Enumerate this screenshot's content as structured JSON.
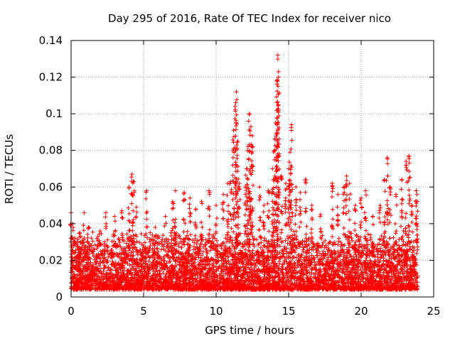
{
  "chart_data": {
    "type": "scatter",
    "title": "Day 295 of 2016, Rate Of TEC Index for receiver nico",
    "xlabel": "GPS time / hours",
    "ylabel": "ROTI / TECUs",
    "xlim": [
      0,
      24
    ],
    "ylim": [
      0,
      0.14
    ],
    "x_ticks": [
      0,
      5,
      10,
      15,
      20,
      25
    ],
    "x_tick_labels": [
      "0",
      "5",
      "10",
      "15",
      "20",
      "25"
    ],
    "y_ticks": [
      0,
      0.02,
      0.04,
      0.06,
      0.08,
      0.1,
      0.12,
      0.14
    ],
    "y_tick_labels": [
      "0",
      "0.02",
      "0.04",
      "0.06",
      "0.08",
      "0.1",
      "0.12",
      "0.14"
    ],
    "grid": true,
    "marker": "+",
    "series_color": "#ff0000",
    "series": [
      {
        "name": "ROTI",
        "points": [
          [
            0.0,
            0.046
          ],
          [
            0.1,
            0.04
          ],
          [
            0.2,
            0.03
          ],
          [
            0.6,
            0.035
          ],
          [
            0.9,
            0.046
          ],
          [
            1.2,
            0.038
          ],
          [
            2.0,
            0.036
          ],
          [
            2.4,
            0.046
          ],
          [
            3.0,
            0.044
          ],
          [
            3.5,
            0.047
          ],
          [
            4.0,
            0.06
          ],
          [
            4.2,
            0.067
          ],
          [
            4.3,
            0.063
          ],
          [
            4.5,
            0.049
          ],
          [
            5.2,
            0.058
          ],
          [
            5.8,
            0.038
          ],
          [
            6.5,
            0.044
          ],
          [
            7.0,
            0.052
          ],
          [
            7.2,
            0.058
          ],
          [
            7.8,
            0.057
          ],
          [
            8.2,
            0.054
          ],
          [
            8.6,
            0.048
          ],
          [
            9.0,
            0.052
          ],
          [
            9.5,
            0.058
          ],
          [
            10.0,
            0.05
          ],
          [
            10.5,
            0.056
          ],
          [
            10.8,
            0.062
          ],
          [
            11.0,
            0.063
          ],
          [
            11.2,
            0.091
          ],
          [
            11.35,
            0.106
          ],
          [
            11.4,
            0.112
          ],
          [
            11.5,
            0.085
          ],
          [
            11.6,
            0.062
          ],
          [
            12.0,
            0.06
          ],
          [
            12.1,
            0.07
          ],
          [
            12.2,
            0.082
          ],
          [
            12.3,
            0.1
          ],
          [
            12.4,
            0.093
          ],
          [
            12.5,
            0.088
          ],
          [
            13.0,
            0.06
          ],
          [
            13.3,
            0.05
          ],
          [
            13.6,
            0.058
          ],
          [
            13.9,
            0.07
          ],
          [
            14.0,
            0.08
          ],
          [
            14.1,
            0.095
          ],
          [
            14.2,
            0.118
          ],
          [
            14.25,
            0.132
          ],
          [
            14.3,
            0.12
          ],
          [
            14.5,
            0.066
          ],
          [
            14.8,
            0.062
          ],
          [
            15.0,
            0.07
          ],
          [
            15.1,
            0.079
          ],
          [
            15.2,
            0.094
          ],
          [
            15.5,
            0.06
          ],
          [
            15.8,
            0.057
          ],
          [
            16.2,
            0.064
          ],
          [
            16.6,
            0.05
          ],
          [
            17.2,
            0.045
          ],
          [
            18.0,
            0.062
          ],
          [
            18.4,
            0.056
          ],
          [
            18.8,
            0.06
          ],
          [
            19.0,
            0.066
          ],
          [
            19.2,
            0.062
          ],
          [
            19.6,
            0.05
          ],
          [
            20.0,
            0.054
          ],
          [
            20.3,
            0.058
          ],
          [
            20.8,
            0.044
          ],
          [
            21.3,
            0.05
          ],
          [
            21.6,
            0.064
          ],
          [
            21.8,
            0.076
          ],
          [
            22.0,
            0.06
          ],
          [
            22.4,
            0.056
          ],
          [
            22.8,
            0.064
          ],
          [
            23.1,
            0.074
          ],
          [
            23.3,
            0.077
          ],
          [
            23.5,
            0.05
          ],
          [
            23.8,
            0.058
          ],
          [
            23.85,
            0.056
          ]
        ],
        "background_band": {
          "x_range": [
            0,
            23.9
          ],
          "y_range": [
            0.004,
            0.03
          ]
        }
      }
    ]
  }
}
